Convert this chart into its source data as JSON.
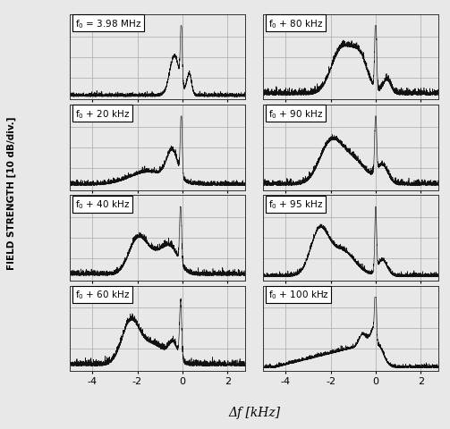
{
  "panels_left": [
    {
      "label": "f$_0$ = 3.98 MHz",
      "idx": 0
    },
    {
      "label": "f$_0$ + 20 kHz",
      "idx": 1
    },
    {
      "label": "f$_0$ + 40 kHz",
      "idx": 2
    },
    {
      "label": "f$_0$ + 60 kHz",
      "idx": 3
    }
  ],
  "panels_right": [
    {
      "label": "f$_0$ + 80 kHz",
      "idx": 4
    },
    {
      "label": "f$_0$ + 90 kHz",
      "idx": 5
    },
    {
      "label": "f$_0$ + 95 kHz",
      "idx": 6
    },
    {
      "label": "f$_0$ + 100 kHz",
      "idx": 7
    }
  ],
  "xlim": [
    -5.0,
    2.8
  ],
  "xticks": [
    -4,
    -2,
    0,
    2
  ],
  "ylabel": "FIELD STRENGTH [10 dB/div.]",
  "xlabel": "Δf [kHz]",
  "grid_color": "#aaaaaa",
  "line_color": "#111111",
  "bg_color": "#f0f0f0",
  "label_fontsize": 7.5,
  "axis_fontsize": 8,
  "xlabel_fontsize": 10
}
